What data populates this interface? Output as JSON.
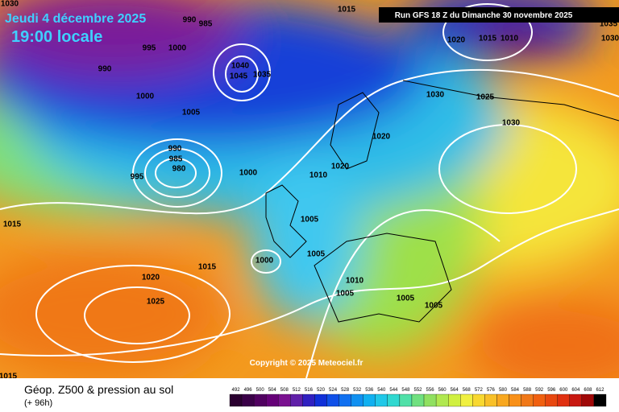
{
  "header": {
    "date": "Jeudi 4 décembre 2025",
    "time": "19:00 locale",
    "run": "Run GFS 18 Z du Dimanche 30 novembre 2025"
  },
  "copyright": "Copyright © 2025 Meteociel.fr",
  "footer": {
    "title": "Géop. Z500 & pression au sol",
    "lead": "(+ 96h)"
  },
  "legend": {
    "levels": [
      492,
      496,
      500,
      504,
      508,
      512,
      516,
      520,
      524,
      528,
      532,
      536,
      540,
      544,
      548,
      552,
      556,
      560,
      564,
      568,
      572,
      576,
      580,
      584,
      588,
      592,
      596,
      600,
      604,
      608,
      612
    ]
  },
  "isobar_labels": [
    "1030",
    "1015",
    "990",
    "985",
    "995",
    "1000",
    "990",
    "1000",
    "1040",
    "1045",
    "1035",
    "1005",
    "990",
    "985",
    "980",
    "995",
    "1000",
    "1010",
    "1020",
    "1020",
    "1030",
    "1025",
    "1030",
    "1020",
    "1015",
    "1010",
    "1035",
    "1030",
    "1015",
    "1005",
    "1005",
    "1000",
    "1015",
    "1020",
    "1025",
    "1010",
    "1005",
    "1005",
    "1005",
    "1015"
  ]
}
